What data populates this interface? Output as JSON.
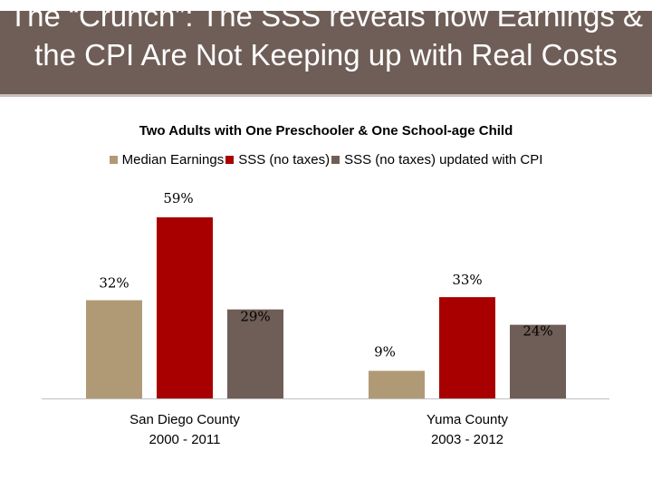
{
  "header": {
    "title": "The “Crunch”: The SSS reveals how Earnings & the CPI Are Not Keeping up with Real Costs"
  },
  "colors": {
    "header_bg": "#6f5e57",
    "series": [
      "#b09a76",
      "#a80000",
      "#6f5e57"
    ]
  },
  "chart_data": {
    "type": "bar",
    "title": "Two Adults with One Preschooler & One School-age Child",
    "categories": [
      [
        "San Diego County",
        "2000 - 2011"
      ],
      [
        "Yuma County",
        "2003 - 2012"
      ]
    ],
    "series": [
      {
        "name": "Median Earnings",
        "values": [
          32,
          9
        ],
        "labels": [
          "32%",
          "9%"
        ]
      },
      {
        "name": "SSS (no taxes)",
        "values": [
          59,
          33
        ],
        "labels": [
          "59%",
          "33%"
        ]
      },
      {
        "name": "SSS (no taxes) updated with CPI",
        "values": [
          29,
          24
        ],
        "labels": [
          "29%",
          "24%"
        ]
      }
    ],
    "xlabel": "",
    "ylabel": "",
    "ylim": [
      0,
      59
    ],
    "grid": false,
    "legend": "top"
  }
}
